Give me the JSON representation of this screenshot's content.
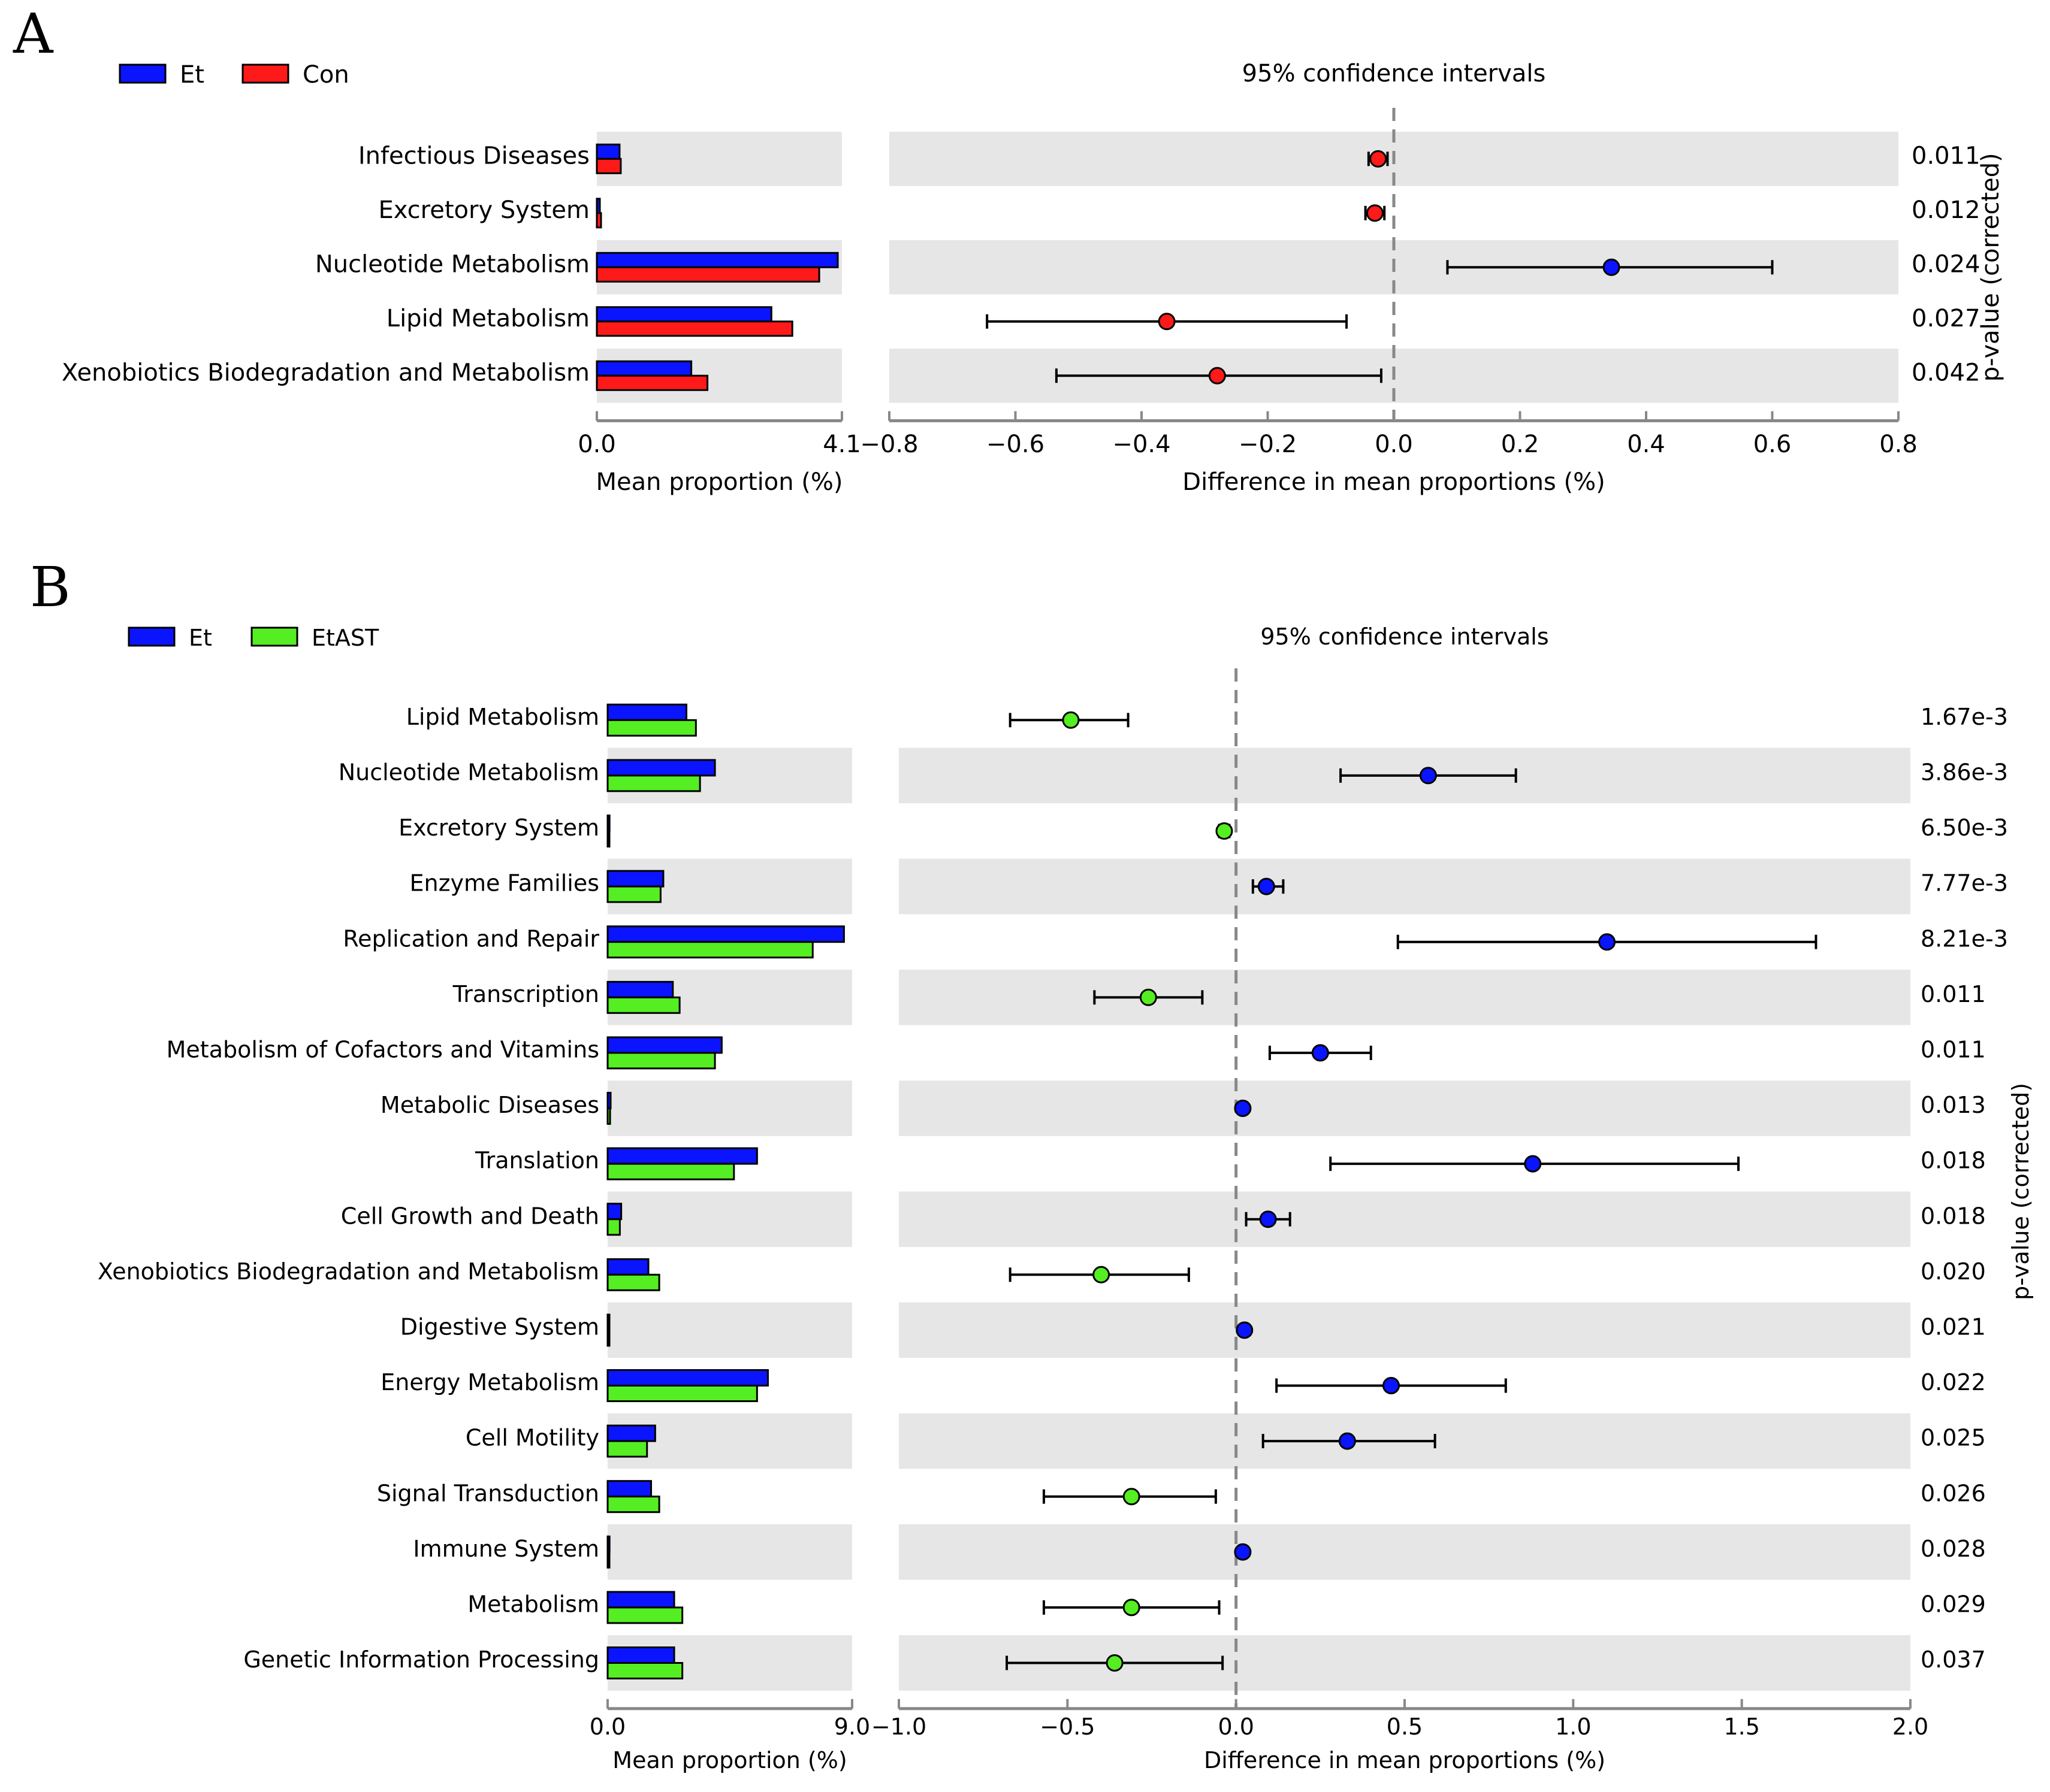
{
  "colors": {
    "et": "#0a14ff",
    "con": "#ff1a1a",
    "etast": "#55ee22",
    "stripe": "#e6e6e6",
    "axis": "#888888"
  },
  "chart_data": [
    {
      "type": "bar",
      "panel_label": "A",
      "legend": [
        "Et",
        "Con"
      ],
      "series_colors": [
        "#0a14ff",
        "#ff1a1a"
      ],
      "categories": [
        "Infectious Diseases",
        "Excretory System",
        "Nucleotide Metabolism",
        "Lipid Metabolism",
        "Xenobiotics Biodegradation and Metabolism"
      ],
      "series": [
        {
          "name": "Et",
          "values": [
            0.38,
            0.05,
            4.03,
            2.92,
            1.58
          ]
        },
        {
          "name": "Con",
          "values": [
            0.4,
            0.07,
            3.72,
            3.27,
            1.85
          ]
        }
      ],
      "bar_axis": {
        "xlabel": "Mean proportion (%)",
        "xlim": [
          0,
          4.1
        ],
        "ticks": [
          "0.0",
          "4.1"
        ]
      },
      "ci": {
        "title": "95% confidence intervals",
        "xlabel": "Difference in mean proportions (%)",
        "xlim": [
          -0.8,
          0.8
        ],
        "ticks": [
          -0.8,
          -0.6,
          -0.4,
          -0.2,
          0.0,
          0.2,
          0.4,
          0.6,
          0.8
        ],
        "tick_labels": [
          "−0.8",
          "−0.6",
          "−0.4",
          "−0.2",
          "0.0",
          "0.2",
          "0.4",
          "0.6",
          "0.8"
        ],
        "estimates": [
          -0.025,
          -0.03,
          0.345,
          -0.36,
          -0.28
        ],
        "lower": [
          -0.04,
          -0.045,
          0.085,
          -0.645,
          -0.535
        ],
        "upper": [
          -0.01,
          -0.015,
          0.6,
          -0.075,
          -0.02
        ],
        "favours": [
          "Con",
          "Con",
          "Et",
          "Con",
          "Con"
        ]
      },
      "p_values": [
        "0.011",
        "0.012",
        "0.024",
        "0.027",
        "0.042"
      ],
      "p_label": "p-value (corrected)"
    },
    {
      "type": "bar",
      "panel_label": "B",
      "legend": [
        "Et",
        "EtAST"
      ],
      "series_colors": [
        "#0a14ff",
        "#55ee22"
      ],
      "categories": [
        "Lipid Metabolism",
        "Nucleotide Metabolism",
        "Excretory System",
        "Enzyme Families",
        "Replication and Repair",
        "Transcription",
        "Metabolism of Cofactors and Vitamins",
        "Metabolic Diseases",
        "Translation",
        "Cell Growth and Death",
        "Xenobiotics Biodegradation and Metabolism",
        "Digestive System",
        "Energy Metabolism",
        "Cell Motility",
        "Signal Transduction",
        "Immune System",
        "Metabolism",
        "Genetic Information Processing"
      ],
      "series": [
        {
          "name": "Et",
          "values": [
            2.9,
            3.95,
            0.07,
            2.05,
            8.7,
            2.4,
            4.2,
            0.11,
            5.5,
            0.5,
            1.5,
            0.05,
            5.9,
            1.75,
            1.6,
            0.07,
            2.45,
            2.45
          ]
        },
        {
          "name": "EtAST",
          "values": [
            3.25,
            3.4,
            0.06,
            1.95,
            7.55,
            2.65,
            3.95,
            0.09,
            4.65,
            0.45,
            1.9,
            0.04,
            5.5,
            1.45,
            1.9,
            0.06,
            2.75,
            2.75
          ]
        }
      ],
      "bar_axis": {
        "xlabel": "Mean proportion (%)",
        "xlim": [
          0,
          9.0
        ],
        "ticks": [
          "0.0",
          "9.0"
        ]
      },
      "ci": {
        "title": "95% confidence intervals",
        "xlabel": "Difference in mean proportions (%)",
        "xlim": [
          -1.0,
          2.0
        ],
        "ticks": [
          -1.0,
          -0.5,
          0.0,
          0.5,
          1.0,
          1.5,
          2.0
        ],
        "tick_labels": [
          "−1.0",
          "−0.5",
          "0.0",
          "0.5",
          "1.0",
          "1.5",
          "2.0"
        ],
        "estimates": [
          -0.49,
          0.57,
          -0.035,
          0.09,
          1.1,
          -0.26,
          0.25,
          0.02,
          0.88,
          0.095,
          -0.4,
          0.025,
          0.46,
          0.33,
          -0.31,
          0.02,
          -0.31,
          -0.36
        ],
        "lower": [
          -0.67,
          0.31,
          -0.05,
          0.05,
          0.48,
          -0.42,
          0.1,
          0.01,
          0.28,
          0.03,
          -0.67,
          0.015,
          0.12,
          0.08,
          -0.57,
          0.01,
          -0.57,
          -0.68
        ],
        "upper": [
          -0.32,
          0.83,
          -0.02,
          0.14,
          1.72,
          -0.1,
          0.4,
          0.03,
          1.49,
          0.16,
          -0.14,
          0.035,
          0.8,
          0.59,
          -0.06,
          0.03,
          -0.05,
          -0.04
        ],
        "favours": [
          "EtAST",
          "Et",
          "EtAST",
          "Et",
          "Et",
          "EtAST",
          "Et",
          "Et",
          "Et",
          "Et",
          "EtAST",
          "Et",
          "Et",
          "Et",
          "EtAST",
          "Et",
          "EtAST",
          "EtAST"
        ]
      },
      "p_values": [
        "1.67e-3",
        "3.86e-3",
        "6.50e-3",
        "7.77e-3",
        "8.21e-3",
        "0.011",
        "0.011",
        "0.013",
        "0.018",
        "0.018",
        "0.020",
        "0.021",
        "0.022",
        "0.025",
        "0.026",
        "0.028",
        "0.029",
        "0.037"
      ],
      "p_label": "p-value (corrected)"
    }
  ]
}
